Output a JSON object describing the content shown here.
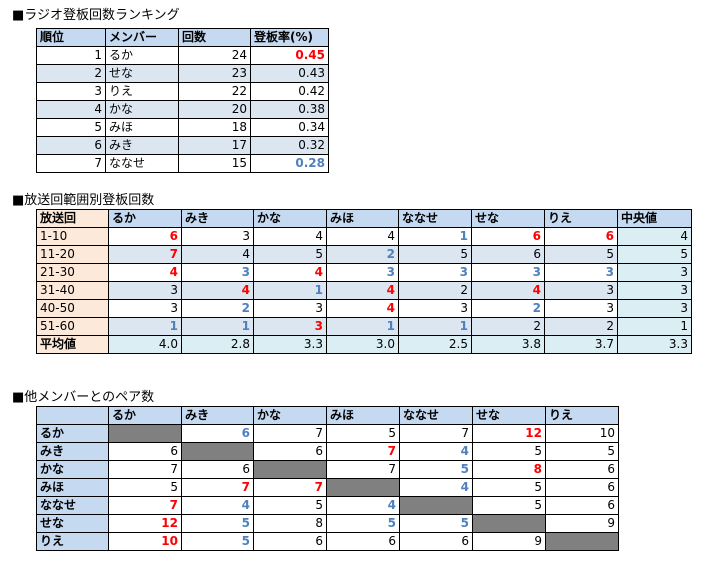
{
  "ranking": {
    "title": "■ラジオ登板回数ランキング",
    "headers": [
      "順位",
      "メンバー",
      "回数",
      "登板率(%)"
    ],
    "rows": [
      {
        "rank": "1",
        "member": "るか",
        "count": "24",
        "rate": "0.45",
        "style": "hi"
      },
      {
        "rank": "2",
        "member": "せな",
        "count": "23",
        "rate": "0.43",
        "style": ""
      },
      {
        "rank": "3",
        "member": "りえ",
        "count": "22",
        "rate": "0.42",
        "style": ""
      },
      {
        "rank": "4",
        "member": "かな",
        "count": "20",
        "rate": "0.38",
        "style": ""
      },
      {
        "rank": "5",
        "member": "みほ",
        "count": "18",
        "rate": "0.34",
        "style": ""
      },
      {
        "rank": "6",
        "member": "みき",
        "count": "17",
        "rate": "0.32",
        "style": ""
      },
      {
        "rank": "7",
        "member": "ななせ",
        "count": "15",
        "rate": "0.28",
        "style": "lo"
      }
    ]
  },
  "range_table": {
    "title": "■放送回範囲別登板回数",
    "headers": [
      "放送回",
      "るか",
      "みき",
      "かな",
      "みほ",
      "ななせ",
      "せな",
      "りえ",
      "中央値"
    ],
    "rows": [
      {
        "label": "1-10",
        "cells": [
          {
            "v": "6",
            "s": "hi"
          },
          {
            "v": "3",
            "s": ""
          },
          {
            "v": "4",
            "s": ""
          },
          {
            "v": "4",
            "s": ""
          },
          {
            "v": "1",
            "s": "lo"
          },
          {
            "v": "6",
            "s": "hi"
          },
          {
            "v": "6",
            "s": "hi"
          }
        ],
        "median": "4"
      },
      {
        "label": "11-20",
        "cells": [
          {
            "v": "7",
            "s": "hi"
          },
          {
            "v": "4",
            "s": ""
          },
          {
            "v": "5",
            "s": ""
          },
          {
            "v": "2",
            "s": "lo"
          },
          {
            "v": "5",
            "s": ""
          },
          {
            "v": "6",
            "s": ""
          },
          {
            "v": "5",
            "s": ""
          }
        ],
        "median": "5"
      },
      {
        "label": "21-30",
        "cells": [
          {
            "v": "4",
            "s": "hi"
          },
          {
            "v": "3",
            "s": "lo"
          },
          {
            "v": "4",
            "s": "hi"
          },
          {
            "v": "3",
            "s": "lo"
          },
          {
            "v": "3",
            "s": "lo"
          },
          {
            "v": "3",
            "s": "lo"
          },
          {
            "v": "3",
            "s": "lo"
          }
        ],
        "median": "3"
      },
      {
        "label": "31-40",
        "cells": [
          {
            "v": "3",
            "s": ""
          },
          {
            "v": "4",
            "s": "hi"
          },
          {
            "v": "1",
            "s": "lo"
          },
          {
            "v": "4",
            "s": "hi"
          },
          {
            "v": "2",
            "s": ""
          },
          {
            "v": "4",
            "s": "hi"
          },
          {
            "v": "3",
            "s": ""
          }
        ],
        "median": "3"
      },
      {
        "label": "40-50",
        "cells": [
          {
            "v": "3",
            "s": ""
          },
          {
            "v": "2",
            "s": "lo"
          },
          {
            "v": "3",
            "s": ""
          },
          {
            "v": "4",
            "s": "hi"
          },
          {
            "v": "3",
            "s": ""
          },
          {
            "v": "2",
            "s": "lo"
          },
          {
            "v": "3",
            "s": ""
          }
        ],
        "median": "3"
      },
      {
        "label": "51-60",
        "cells": [
          {
            "v": "1",
            "s": "lo"
          },
          {
            "v": "1",
            "s": "lo"
          },
          {
            "v": "3",
            "s": "hi"
          },
          {
            "v": "1",
            "s": "lo"
          },
          {
            "v": "1",
            "s": "lo"
          },
          {
            "v": "2",
            "s": ""
          },
          {
            "v": "2",
            "s": ""
          }
        ],
        "median": "1"
      }
    ],
    "average": {
      "label": "平均値",
      "values": [
        "4.0",
        "2.8",
        "3.3",
        "3.0",
        "2.5",
        "3.8",
        "3.7",
        "3.3"
      ]
    }
  },
  "pair_table": {
    "title": "■他メンバーとのペア数",
    "headers": [
      "",
      "るか",
      "みき",
      "かな",
      "みほ",
      "ななせ",
      "せな",
      "りえ"
    ],
    "rows": [
      {
        "label": "るか",
        "cells": [
          {
            "v": "",
            "s": "diag"
          },
          {
            "v": "6",
            "s": "lo"
          },
          {
            "v": "7",
            "s": ""
          },
          {
            "v": "5",
            "s": ""
          },
          {
            "v": "7",
            "s": ""
          },
          {
            "v": "12",
            "s": "hi"
          },
          {
            "v": "10",
            "s": ""
          }
        ]
      },
      {
        "label": "みき",
        "cells": [
          {
            "v": "6",
            "s": ""
          },
          {
            "v": "",
            "s": "diag"
          },
          {
            "v": "6",
            "s": ""
          },
          {
            "v": "7",
            "s": "hi"
          },
          {
            "v": "4",
            "s": "lo"
          },
          {
            "v": "5",
            "s": ""
          },
          {
            "v": "5",
            "s": ""
          }
        ]
      },
      {
        "label": "かな",
        "cells": [
          {
            "v": "7",
            "s": ""
          },
          {
            "v": "6",
            "s": ""
          },
          {
            "v": "",
            "s": "diag"
          },
          {
            "v": "7",
            "s": ""
          },
          {
            "v": "5",
            "s": "lo"
          },
          {
            "v": "8",
            "s": "hi"
          },
          {
            "v": "6",
            "s": ""
          }
        ]
      },
      {
        "label": "みほ",
        "cells": [
          {
            "v": "5",
            "s": ""
          },
          {
            "v": "7",
            "s": "hi"
          },
          {
            "v": "7",
            "s": "hi"
          },
          {
            "v": "",
            "s": "diag"
          },
          {
            "v": "4",
            "s": "lo"
          },
          {
            "v": "5",
            "s": ""
          },
          {
            "v": "6",
            "s": ""
          }
        ]
      },
      {
        "label": "ななせ",
        "cells": [
          {
            "v": "7",
            "s": "hi"
          },
          {
            "v": "4",
            "s": "lo"
          },
          {
            "v": "5",
            "s": ""
          },
          {
            "v": "4",
            "s": "lo"
          },
          {
            "v": "",
            "s": "diag"
          },
          {
            "v": "5",
            "s": ""
          },
          {
            "v": "6",
            "s": ""
          }
        ]
      },
      {
        "label": "せな",
        "cells": [
          {
            "v": "12",
            "s": "hi"
          },
          {
            "v": "5",
            "s": "lo"
          },
          {
            "v": "8",
            "s": ""
          },
          {
            "v": "5",
            "s": "lo"
          },
          {
            "v": "5",
            "s": "lo"
          },
          {
            "v": "",
            "s": "diag"
          },
          {
            "v": "9",
            "s": ""
          }
        ]
      },
      {
        "label": "りえ",
        "cells": [
          {
            "v": "10",
            "s": "hi"
          },
          {
            "v": "5",
            "s": "lo"
          },
          {
            "v": "6",
            "s": ""
          },
          {
            "v": "6",
            "s": ""
          },
          {
            "v": "6",
            "s": ""
          },
          {
            "v": "9",
            "s": ""
          },
          {
            "v": "",
            "s": "diag"
          }
        ]
      }
    ]
  },
  "colors": {
    "high": "#ff0000",
    "low": "#4f81bd",
    "header": "#c5d9f1",
    "stripe": "#dce6f1",
    "label": "#fde9d9",
    "median": "#daeef3",
    "diagonal": "#808080"
  }
}
